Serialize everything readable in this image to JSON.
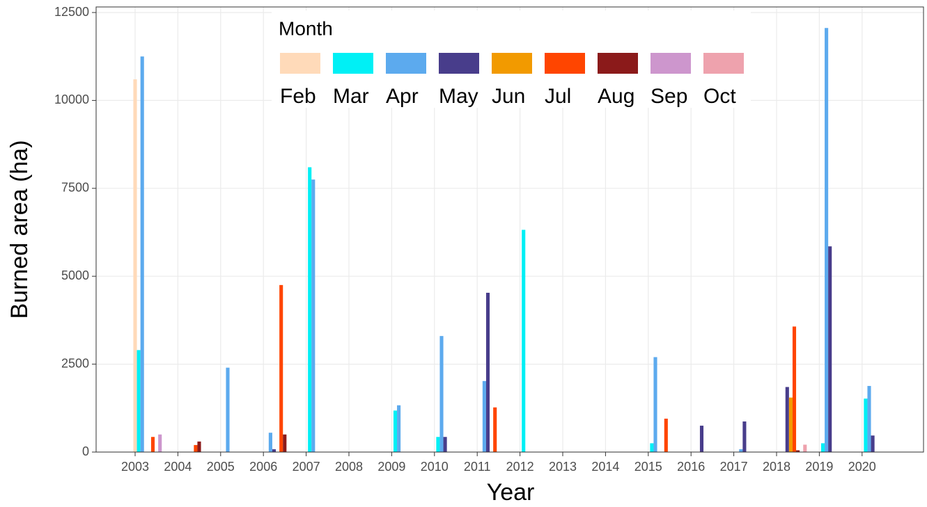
{
  "chart_data": {
    "type": "bar",
    "x_label": "Year",
    "y_label": "Burned area (ha)",
    "legend_title": "Month",
    "categories": [
      "2003",
      "2004",
      "2005",
      "2006",
      "2007",
      "2008",
      "2009",
      "2010",
      "2011",
      "2012",
      "2013",
      "2014",
      "2015",
      "2016",
      "2017",
      "2018",
      "2019",
      "2020"
    ],
    "series": [
      {
        "name": "Feb",
        "color": "#ffdab9",
        "values": [
          10600,
          null,
          null,
          null,
          null,
          null,
          null,
          null,
          null,
          null,
          null,
          null,
          null,
          null,
          null,
          null,
          null,
          null
        ]
      },
      {
        "name": "Mar",
        "color": "#00f0f5",
        "values": [
          2900,
          null,
          null,
          null,
          8100,
          null,
          1180,
          430,
          null,
          6320,
          null,
          null,
          250,
          null,
          null,
          null,
          250,
          1520
        ]
      },
      {
        "name": "Apr",
        "color": "#5caaee",
        "values": [
          11250,
          null,
          2400,
          550,
          7750,
          null,
          1330,
          3300,
          2020,
          null,
          null,
          null,
          2700,
          null,
          80,
          null,
          12060,
          1880
        ]
      },
      {
        "name": "May",
        "color": "#483d8b",
        "values": [
          null,
          null,
          null,
          80,
          null,
          null,
          null,
          430,
          4530,
          null,
          null,
          null,
          null,
          750,
          870,
          1850,
          5850,
          470
        ]
      },
      {
        "name": "Jun",
        "color": "#f29a00",
        "values": [
          null,
          null,
          null,
          null,
          null,
          null,
          null,
          null,
          null,
          null,
          null,
          null,
          null,
          null,
          null,
          1550,
          null,
          null
        ]
      },
      {
        "name": "Jul",
        "color": "#ff4500",
        "values": [
          430,
          200,
          null,
          4750,
          null,
          null,
          null,
          null,
          1270,
          null,
          null,
          null,
          950,
          null,
          null,
          3570,
          null,
          null
        ]
      },
      {
        "name": "Aug",
        "color": "#8b1a1a",
        "values": [
          null,
          300,
          null,
          500,
          null,
          null,
          null,
          null,
          null,
          null,
          null,
          null,
          null,
          null,
          null,
          50,
          null,
          null
        ]
      },
      {
        "name": "Sep",
        "color": "#cd96cd",
        "values": [
          500,
          null,
          null,
          null,
          null,
          null,
          null,
          null,
          null,
          null,
          null,
          null,
          null,
          null,
          null,
          null,
          null,
          null
        ]
      },
      {
        "name": "Oct",
        "color": "#eea2ad",
        "values": [
          null,
          null,
          null,
          null,
          null,
          null,
          null,
          null,
          null,
          null,
          null,
          null,
          null,
          null,
          null,
          210,
          null,
          null
        ]
      }
    ],
    "ylim": [
      0,
      12500
    ],
    "yticks": [
      0,
      2500,
      5000,
      7500,
      10000,
      12500
    ],
    "grid": true,
    "legend": "top"
  }
}
